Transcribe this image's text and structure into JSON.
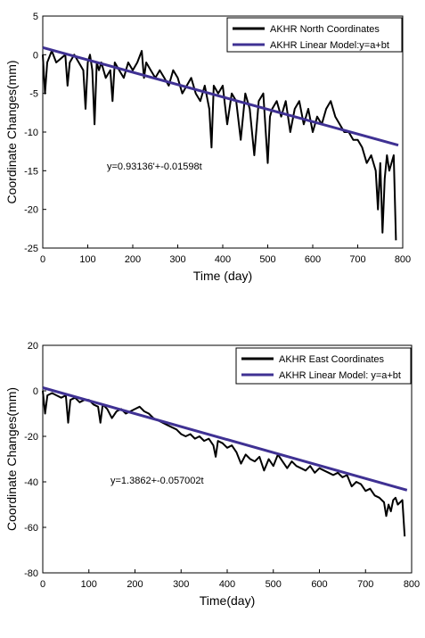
{
  "chart_data": [
    {
      "type": "line",
      "title": "",
      "xlabel": "Time (day)",
      "ylabel": "Coordinate Changes(mm)",
      "xlim": [
        0,
        800
      ],
      "ylim": [
        -25,
        5
      ],
      "xticks": [
        0,
        100,
        200,
        300,
        400,
        500,
        600,
        700,
        800
      ],
      "yticks": [
        5,
        0,
        -5,
        -10,
        -15,
        -20,
        -25
      ],
      "tick_labels_x": [
        "0",
        "100",
        "200",
        "300",
        "400",
        "500",
        "600",
        "700",
        "800"
      ],
      "tick_labels_y": [
        "5",
        "0",
        "-5",
        "-10",
        "-15",
        "-20",
        "-25"
      ],
      "grid": false,
      "legend_position": "top-right",
      "annotation": "y=0.93136'+-0.01598t",
      "series": [
        {
          "name": "AKHR North Coordinates",
          "color": "#000000",
          "x": [
            0,
            5,
            10,
            20,
            30,
            40,
            50,
            55,
            60,
            70,
            80,
            90,
            95,
            100,
            105,
            110,
            115,
            120,
            125,
            130,
            140,
            150,
            155,
            160,
            170,
            180,
            190,
            200,
            210,
            220,
            225,
            230,
            240,
            250,
            260,
            270,
            280,
            290,
            300,
            310,
            320,
            330,
            340,
            350,
            360,
            370,
            375,
            380,
            390,
            400,
            410,
            420,
            430,
            440,
            450,
            460,
            470,
            480,
            490,
            500,
            505,
            510,
            520,
            530,
            540,
            550,
            560,
            570,
            580,
            590,
            600,
            610,
            620,
            630,
            640,
            650,
            660,
            670,
            680,
            690,
            700,
            710,
            720,
            730,
            740,
            745,
            750,
            755,
            760,
            765,
            770,
            775,
            780,
            785
          ],
          "y": [
            0,
            -5,
            -1,
            0.5,
            -1,
            -0.5,
            0,
            -4,
            -1,
            0,
            -1,
            -2,
            -7,
            -1,
            0,
            -2,
            -9,
            -1,
            -2,
            -1,
            -3,
            -2,
            -6,
            -1,
            -2,
            -3,
            -1,
            -2,
            -1,
            0.5,
            -3,
            -1,
            -2,
            -3,
            -2,
            -3,
            -4,
            -2,
            -3,
            -5,
            -4,
            -3,
            -5,
            -6,
            -4,
            -7,
            -12,
            -4,
            -5,
            -4,
            -9,
            -5,
            -6,
            -11,
            -5,
            -7,
            -13,
            -6,
            -5,
            -14,
            -8,
            -7,
            -6,
            -8,
            -6,
            -10,
            -7,
            -6,
            -9,
            -7,
            -10,
            -8,
            -9,
            -7,
            -6,
            -8,
            -9,
            -10,
            -10,
            -11,
            -11,
            -12,
            -14,
            -13,
            -15,
            -20,
            -14,
            -23,
            -16,
            -13,
            -15,
            -14,
            -13,
            -24
          ]
        },
        {
          "name": "AKHR Linear Model:y=a+bt",
          "color": "#3f3193",
          "x": [
            0,
            790
          ],
          "y": [
            0.93136,
            -11.69284
          ]
        }
      ]
    },
    {
      "type": "line",
      "title": "",
      "xlabel": "Time(day)",
      "ylabel": "Coordinate Changes(mm)",
      "xlim": [
        0,
        800
      ],
      "ylim": [
        -80,
        20
      ],
      "xticks": [
        0,
        100,
        200,
        300,
        400,
        500,
        600,
        700,
        800
      ],
      "yticks": [
        20,
        0,
        -20,
        -40,
        -60,
        -80
      ],
      "tick_labels_x": [
        "0",
        "100",
        "200",
        "300",
        "400",
        "500",
        "600",
        "700",
        "800"
      ],
      "tick_labels_y": [
        "20",
        "0",
        "-20",
        "-40",
        "-60",
        "-80"
      ],
      "grid": false,
      "legend_position": "top-right",
      "annotation": "y=1.3862+-0.057002t",
      "series": [
        {
          "name": "AKHR East Coordinates",
          "color": "#000000",
          "x": [
            0,
            5,
            10,
            20,
            30,
            40,
            50,
            55,
            60,
            70,
            80,
            90,
            100,
            110,
            120,
            125,
            130,
            140,
            150,
            160,
            170,
            180,
            190,
            200,
            210,
            220,
            230,
            240,
            250,
            260,
            270,
            280,
            290,
            300,
            310,
            320,
            330,
            340,
            350,
            360,
            370,
            375,
            380,
            390,
            400,
            410,
            420,
            430,
            440,
            450,
            460,
            470,
            480,
            490,
            500,
            510,
            520,
            530,
            540,
            550,
            560,
            570,
            580,
            590,
            600,
            610,
            620,
            630,
            640,
            650,
            660,
            670,
            680,
            690,
            700,
            710,
            720,
            730,
            740,
            745,
            750,
            755,
            760,
            765,
            770,
            775,
            780,
            785
          ],
          "y": [
            0,
            -10,
            -2,
            -1,
            -2,
            -3,
            -2,
            -14,
            -4,
            -3,
            -5,
            -4,
            -4,
            -6,
            -7,
            -14,
            -6,
            -8,
            -12,
            -9,
            -8,
            -10,
            -9,
            -8,
            -7,
            -9,
            -10,
            -12,
            -13,
            -14,
            -15,
            -16,
            -17,
            -19,
            -20,
            -19,
            -21,
            -20,
            -22,
            -21,
            -24,
            -29,
            -22,
            -23,
            -25,
            -24,
            -27,
            -32,
            -28,
            -30,
            -31,
            -29,
            -35,
            -30,
            -33,
            -28,
            -31,
            -34,
            -31,
            -33,
            -34,
            -35,
            -33,
            -36,
            -34,
            -35,
            -36,
            -37,
            -36,
            -38,
            -37,
            -42,
            -40,
            -41,
            -44,
            -43,
            -46,
            -47,
            -49,
            -55,
            -50,
            -53,
            -48,
            -47,
            -50,
            -49,
            -48,
            -64
          ]
        },
        {
          "name": "AKHR Linear Model: y=a+bt",
          "color": "#3f3193",
          "x": [
            0,
            790
          ],
          "y": [
            1.3862,
            -43.64538
          ]
        }
      ]
    }
  ]
}
